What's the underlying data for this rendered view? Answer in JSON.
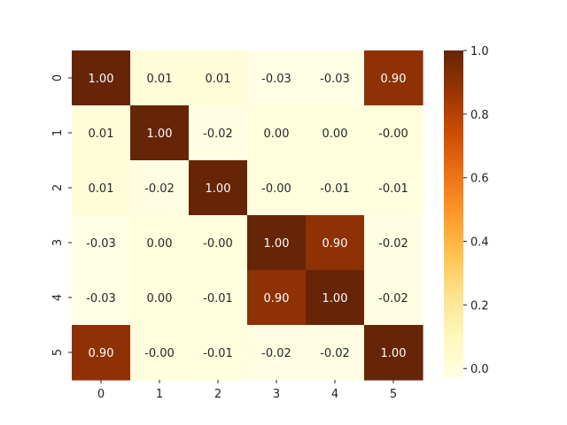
{
  "chart_data": {
    "type": "heatmap",
    "title": "",
    "xlabel": "",
    "ylabel": "",
    "x_categories": [
      "0",
      "1",
      "2",
      "3",
      "4",
      "5"
    ],
    "y_categories": [
      "0",
      "1",
      "2",
      "3",
      "4",
      "5"
    ],
    "values": [
      [
        1.0,
        0.01,
        0.01,
        -0.03,
        -0.03,
        0.9
      ],
      [
        0.01,
        1.0,
        -0.02,
        0.0,
        0.0,
        -0.0
      ],
      [
        0.01,
        -0.02,
        1.0,
        -0.0,
        -0.01,
        -0.01
      ],
      [
        -0.03,
        0.0,
        -0.0,
        1.0,
        0.9,
        -0.02
      ],
      [
        -0.03,
        0.0,
        -0.01,
        0.9,
        1.0,
        -0.02
      ],
      [
        0.9,
        -0.0,
        -0.01,
        -0.02,
        -0.02,
        1.0
      ]
    ],
    "cell_labels": [
      [
        "1.00",
        "0.01",
        "0.01",
        "-0.03",
        "-0.03",
        "0.90"
      ],
      [
        "0.01",
        "1.00",
        "-0.02",
        "0.00",
        "0.00",
        "-0.00"
      ],
      [
        "0.01",
        "-0.02",
        "1.00",
        "-0.00",
        "-0.01",
        "-0.01"
      ],
      [
        "-0.03",
        "0.00",
        "-0.00",
        "1.00",
        "0.90",
        "-0.02"
      ],
      [
        "-0.03",
        "0.00",
        "-0.01",
        "0.90",
        "1.00",
        "-0.02"
      ],
      [
        "0.90",
        "-0.00",
        "-0.01",
        "-0.02",
        "-0.02",
        "1.00"
      ]
    ],
    "colormap": "YlOrBr",
    "color_stops": [
      "#ffffe5",
      "#fff7bc",
      "#fee391",
      "#fec44f",
      "#fe9929",
      "#ec7014",
      "#cc4c02",
      "#993404",
      "#662506"
    ],
    "vmin": -0.03,
    "vmax": 1.0,
    "colorbar": {
      "ticks": [
        0.0,
        0.2,
        0.4,
        0.6,
        0.8,
        1.0
      ],
      "tick_labels": [
        "0.0",
        "0.2",
        "0.4",
        "0.6",
        "0.8",
        "1.0"
      ],
      "placement": "right"
    },
    "annotation_text_light": "#ffffff",
    "annotation_text_dark": "#262626",
    "grid": false
  }
}
